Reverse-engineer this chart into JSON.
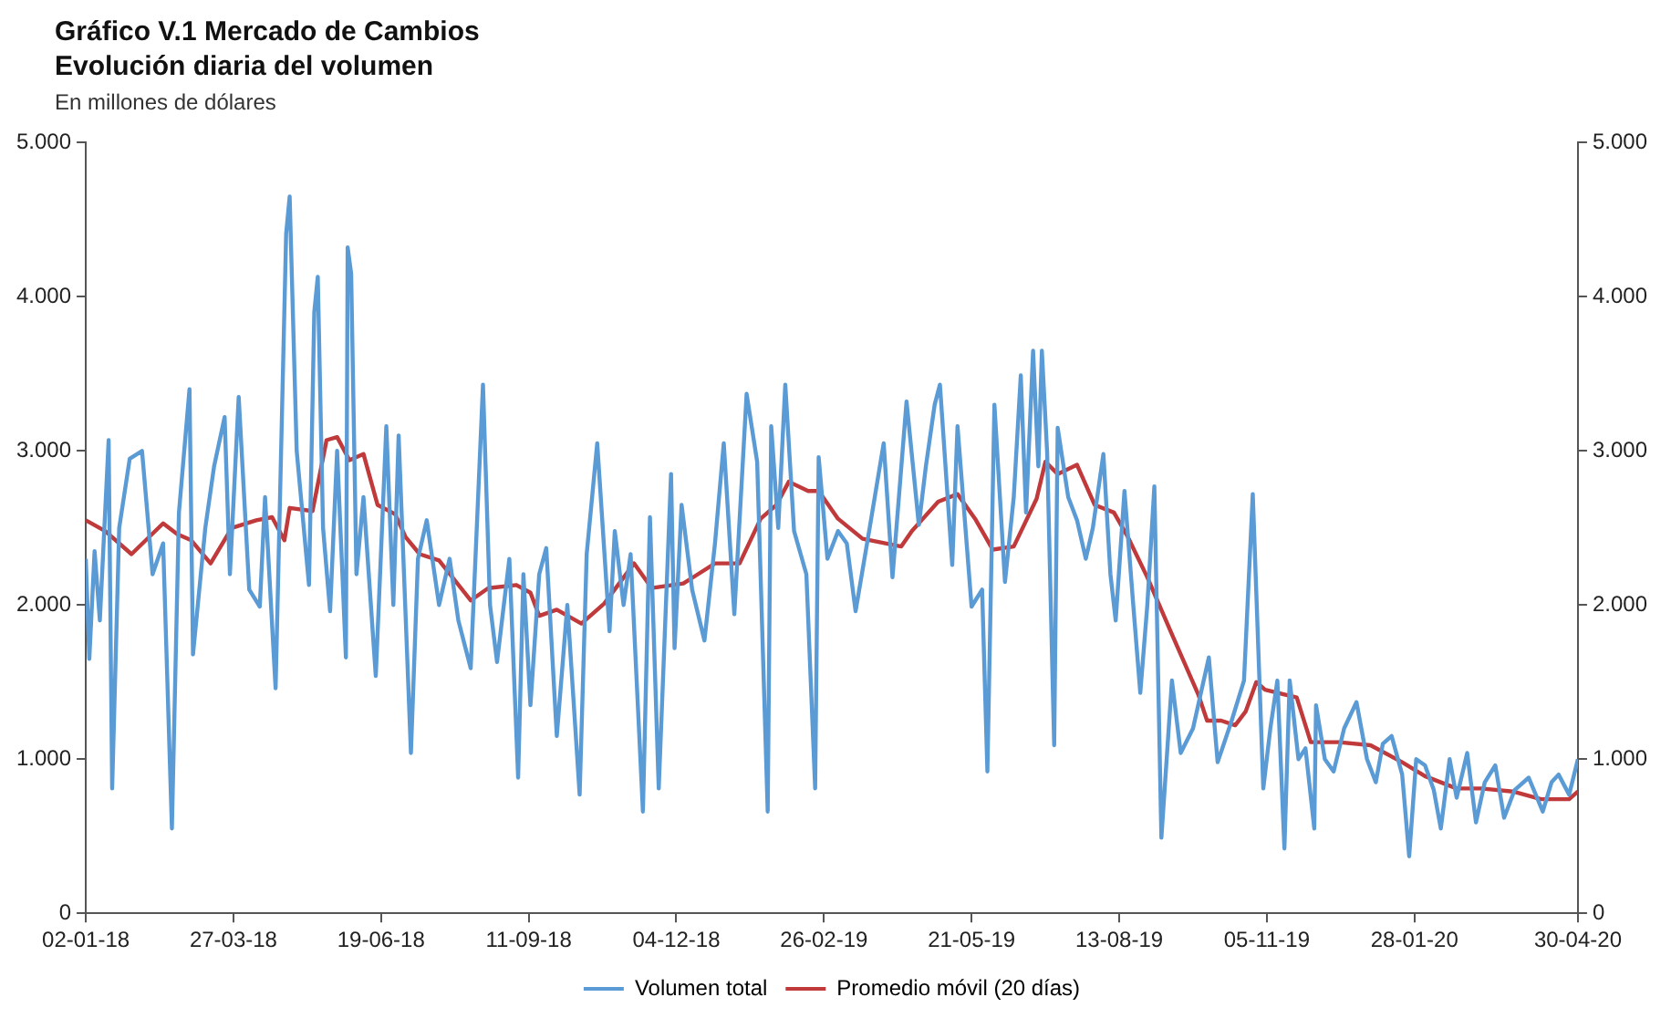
{
  "chart_data": {
    "type": "line",
    "title": "Gráfico V.1 Mercado de Cambios",
    "subtitle": "Evolución diaria del volumen",
    "ylabel": "En millones de dólares",
    "xlim": [
      "2018-01-02",
      "2020-04-30"
    ],
    "xticks": [
      {
        "value": "2018-01-02",
        "label": "02-01-18"
      },
      {
        "value": "2018-03-27",
        "label": "27-03-18"
      },
      {
        "value": "2018-06-19",
        "label": "19-06-18"
      },
      {
        "value": "2018-09-11",
        "label": "11-09-18"
      },
      {
        "value": "2018-12-04",
        "label": "04-12-18"
      },
      {
        "value": "2019-02-26",
        "label": "26-02-19"
      },
      {
        "value": "2019-05-21",
        "label": "21-05-19"
      },
      {
        "value": "2019-08-13",
        "label": "13-08-19"
      },
      {
        "value": "2019-11-05",
        "label": "05-11-19"
      },
      {
        "value": "2020-01-28",
        "label": "28-01-20"
      },
      {
        "value": "2020-04-30",
        "label": "30-04-20"
      }
    ],
    "ylim": [
      0,
      5000
    ],
    "yticks": [
      0,
      {
        "value": 1000,
        "label": "1.000"
      },
      {
        "value": 2000,
        "label": "2.000"
      },
      {
        "value": 3000,
        "label": "3.000"
      },
      {
        "value": 4000,
        "label": "4.000"
      },
      {
        "value": 5000,
        "label": "5.000"
      }
    ],
    "y2lim": [
      0,
      5000
    ],
    "y2ticks": [
      0,
      {
        "value": 1000,
        "label": "1.000"
      },
      {
        "value": 2000,
        "label": "2.000"
      },
      {
        "value": 3000,
        "label": "3.000"
      },
      {
        "value": 4000,
        "label": "4.000"
      },
      {
        "value": 5000,
        "label": "5.000"
      }
    ],
    "grid": false,
    "legend": "bottom",
    "marker": "none",
    "line_style": "solid",
    "series": [
      {
        "name": "Volumen total",
        "color": "#5b9bd5",
        "x": [
          "2018-01-02",
          "2018-01-04",
          "2018-01-07",
          "2018-01-10",
          "2018-01-15",
          "2018-01-17",
          "2018-01-21",
          "2018-01-27",
          "2018-02-03",
          "2018-02-09",
          "2018-02-15",
          "2018-02-20",
          "2018-02-24",
          "2018-03-02",
          "2018-03-04",
          "2018-03-11",
          "2018-03-16",
          "2018-03-22",
          "2018-03-25",
          "2018-03-30",
          "2018-04-05",
          "2018-04-11",
          "2018-04-14",
          "2018-04-20",
          "2018-04-26",
          "2018-04-28",
          "2018-05-02",
          "2018-05-09",
          "2018-05-12",
          "2018-05-14",
          "2018-05-17",
          "2018-05-21",
          "2018-05-25",
          "2018-05-28",
          "2018-05-30",
          "2018-05-31",
          "2018-06-02",
          "2018-06-05",
          "2018-06-09",
          "2018-06-16",
          "2018-06-22",
          "2018-06-26",
          "2018-06-29",
          "2018-07-06",
          "2018-07-10",
          "2018-07-15",
          "2018-07-22",
          "2018-07-28",
          "2018-08-02",
          "2018-08-09",
          "2018-08-16",
          "2018-08-20",
          "2018-08-24",
          "2018-08-31",
          "2018-09-05",
          "2018-09-08",
          "2018-09-12",
          "2018-09-17",
          "2018-09-21",
          "2018-09-27",
          "2018-10-03",
          "2018-10-10",
          "2018-10-14",
          "2018-10-20",
          "2018-10-27",
          "2018-10-30",
          "2018-11-04",
          "2018-11-08",
          "2018-11-15",
          "2018-11-19",
          "2018-11-24",
          "2018-12-01",
          "2018-12-03",
          "2018-12-07",
          "2018-12-13",
          "2018-12-20",
          "2018-12-26",
          "2018-12-31",
          "2019-01-06",
          "2019-01-13",
          "2019-01-19",
          "2019-01-25",
          "2019-01-27",
          "2019-01-31",
          "2019-02-04",
          "2019-02-09",
          "2019-02-16",
          "2019-02-21",
          "2019-02-23",
          "2019-02-28",
          "2019-03-06",
          "2019-03-11",
          "2019-03-16",
          "2019-03-24",
          "2019-04-01",
          "2019-04-06",
          "2019-04-14",
          "2019-04-21",
          "2019-04-25",
          "2019-04-30",
          "2019-05-03",
          "2019-05-10",
          "2019-05-13",
          "2019-05-21",
          "2019-05-27",
          "2019-05-30",
          "2019-06-03",
          "2019-06-09",
          "2019-06-14",
          "2019-06-18",
          "2019-06-21",
          "2019-06-25",
          "2019-06-28",
          "2019-06-30",
          "2019-07-03",
          "2019-07-07",
          "2019-07-09",
          "2019-07-15",
          "2019-07-20",
          "2019-07-25",
          "2019-07-29",
          "2019-08-04",
          "2019-08-08",
          "2019-08-11",
          "2019-08-16",
          "2019-08-21",
          "2019-08-25",
          "2019-08-29",
          "2019-09-02",
          "2019-09-06",
          "2019-09-12",
          "2019-09-17",
          "2019-09-24",
          "2019-10-03",
          "2019-10-08",
          "2019-10-16",
          "2019-10-23",
          "2019-10-28",
          "2019-11-03",
          "2019-11-07",
          "2019-11-11",
          "2019-11-15",
          "2019-11-18",
          "2019-11-23",
          "2019-11-27",
          "2019-12-02",
          "2019-12-03",
          "2019-12-08",
          "2019-12-13",
          "2019-12-19",
          "2019-12-26",
          "2020-01-01",
          "2020-01-06",
          "2020-01-10",
          "2020-01-15",
          "2020-01-21",
          "2020-01-25",
          "2020-01-29",
          "2020-02-03",
          "2020-02-08",
          "2020-02-12",
          "2020-02-17",
          "2020-02-21",
          "2020-02-27",
          "2020-03-03",
          "2020-03-08",
          "2020-03-14",
          "2020-03-19",
          "2020-03-25",
          "2020-04-02",
          "2020-04-10",
          "2020-04-15",
          "2020-04-19",
          "2020-04-25",
          "2020-04-30"
        ],
        "values": [
          2300,
          1650,
          2350,
          1900,
          3070,
          810,
          2500,
          2950,
          3000,
          2200,
          2400,
          550,
          2600,
          3400,
          1680,
          2500,
          2900,
          3220,
          2200,
          3350,
          2100,
          1990,
          2700,
          1460,
          4410,
          4650,
          3000,
          2130,
          3900,
          4130,
          2500,
          1960,
          3000,
          2200,
          1660,
          4320,
          4150,
          2200,
          2700,
          1540,
          3160,
          2000,
          3100,
          1040,
          2300,
          2550,
          2000,
          2300,
          1900,
          1590,
          3430,
          2000,
          1630,
          2300,
          880,
          2200,
          1350,
          2200,
          2370,
          1150,
          2000,
          770,
          2330,
          3050,
          1830,
          2480,
          2000,
          2330,
          660,
          2570,
          810,
          2850,
          1720,
          2650,
          2100,
          1770,
          2400,
          3050,
          1940,
          3370,
          2930,
          660,
          3160,
          2500,
          3430,
          2480,
          2200,
          810,
          2960,
          2300,
          2480,
          2400,
          1960,
          2500,
          3050,
          2180,
          3320,
          2520,
          2900,
          3300,
          3430,
          2260,
          3160,
          1990,
          2100,
          920,
          3300,
          2150,
          2700,
          3490,
          2600,
          3650,
          2900,
          3650,
          2990,
          1090,
          3150,
          2700,
          2550,
          2300,
          2500,
          2980,
          2200,
          1900,
          2740,
          2000,
          1430,
          2000,
          2770,
          490,
          1510,
          1040,
          1200,
          1660,
          980,
          1250,
          1510,
          2720,
          810,
          1200,
          1510,
          420,
          1510,
          1000,
          1070,
          550,
          1350,
          1000,
          920,
          1200,
          1370,
          1000,
          850,
          1100,
          1150,
          900,
          370,
          1000,
          960,
          800,
          550,
          1000,
          750,
          1040,
          590,
          850,
          960,
          620,
          800,
          880,
          660,
          850,
          900,
          770,
          1000
        ]
      },
      {
        "name": "Promedio móvil (20 días)",
        "color": "#c0393b",
        "x": [
          "2018-01-02",
          "2018-01-13",
          "2018-01-28",
          "2018-02-15",
          "2018-02-23",
          "2018-03-03",
          "2018-03-14",
          "2018-03-26",
          "2018-04-09",
          "2018-04-18",
          "2018-04-25",
          "2018-04-28",
          "2018-05-11",
          "2018-05-19",
          "2018-05-25",
          "2018-06-01",
          "2018-06-09",
          "2018-06-17",
          "2018-06-27",
          "2018-07-03",
          "2018-07-11",
          "2018-07-22",
          "2018-08-09",
          "2018-08-19",
          "2018-09-04",
          "2018-09-12",
          "2018-09-17",
          "2018-09-27",
          "2018-10-11",
          "2018-10-24",
          "2018-11-10",
          "2018-11-20",
          "2018-12-08",
          "2018-12-26",
          "2019-01-09",
          "2019-01-21",
          "2019-01-30",
          "2019-02-06",
          "2019-02-17",
          "2019-02-23",
          "2019-03-06",
          "2019-03-20",
          "2019-04-11",
          "2019-04-17",
          "2019-05-02",
          "2019-05-13",
          "2019-05-23",
          "2019-06-02",
          "2019-06-14",
          "2019-06-27",
          "2019-07-02",
          "2019-07-09",
          "2019-07-20",
          "2019-07-30",
          "2019-08-10",
          "2019-08-18",
          "2019-08-29",
          "2019-09-12",
          "2019-09-27",
          "2019-10-02",
          "2019-10-10",
          "2019-10-18",
          "2019-10-24",
          "2019-10-30",
          "2019-11-04",
          "2019-11-22",
          "2019-11-30",
          "2019-12-16",
          "2020-01-03",
          "2020-01-21",
          "2020-02-03",
          "2020-02-21",
          "2020-03-06",
          "2020-03-24",
          "2020-04-09",
          "2020-04-25",
          "2020-04-30"
        ],
        "values": [
          2550,
          2480,
          2330,
          2530,
          2460,
          2420,
          2270,
          2500,
          2550,
          2570,
          2420,
          2630,
          2610,
          3070,
          3090,
          2940,
          2980,
          2650,
          2590,
          2440,
          2330,
          2290,
          2030,
          2110,
          2130,
          2080,
          1930,
          1970,
          1880,
          2010,
          2270,
          2110,
          2140,
          2270,
          2270,
          2560,
          2650,
          2800,
          2740,
          2740,
          2560,
          2430,
          2380,
          2480,
          2670,
          2720,
          2560,
          2360,
          2380,
          2690,
          2930,
          2850,
          2910,
          2650,
          2600,
          2440,
          2180,
          1810,
          1420,
          1250,
          1250,
          1220,
          1310,
          1500,
          1450,
          1400,
          1110,
          1110,
          1090,
          980,
          890,
          810,
          810,
          790,
          740,
          740,
          790
        ]
      }
    ]
  }
}
